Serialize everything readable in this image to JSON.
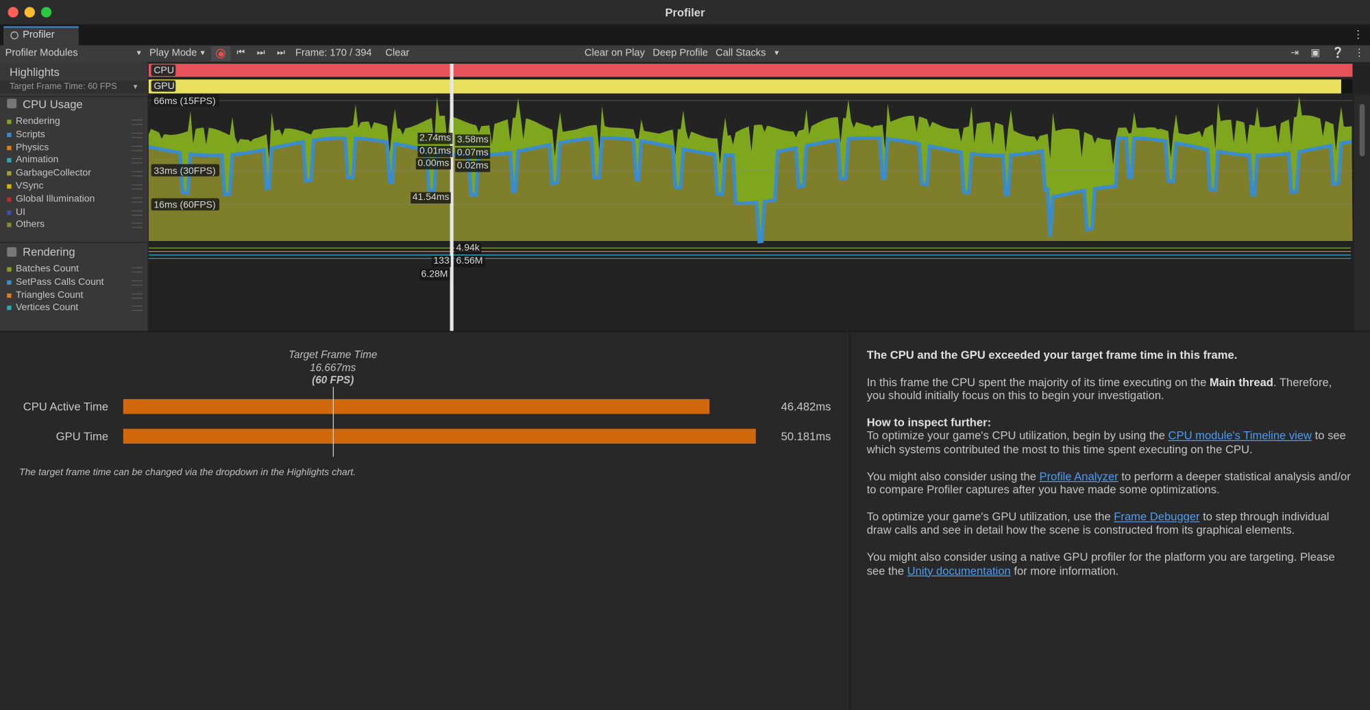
{
  "window": {
    "title": "Profiler"
  },
  "tab": "Profiler",
  "toolbar": {
    "modules": "Profiler Modules",
    "play_mode": "Play Mode",
    "frame": "Frame: 170 / 394",
    "clear": "Clear",
    "clear_on_play": "Clear on Play",
    "deep_profile": "Deep Profile",
    "call_stacks": "Call Stacks"
  },
  "highlights": {
    "title": "Highlights",
    "target": "Target Frame Time: 60 FPS",
    "cpu": "CPU",
    "gpu": "GPU"
  },
  "cpu_usage": {
    "title": "CPU Usage",
    "legend": [
      {
        "name": "Rendering",
        "color": "#7ea71e"
      },
      {
        "name": "Scripts",
        "color": "#3a8ccc"
      },
      {
        "name": "Physics",
        "color": "#e07a1c"
      },
      {
        "name": "Animation",
        "color": "#2ba8b2"
      },
      {
        "name": "GarbageCollector",
        "color": "#a3a032"
      },
      {
        "name": "VSync",
        "color": "#d8b400"
      },
      {
        "name": "Global Illumination",
        "color": "#b3312a"
      },
      {
        "name": "UI",
        "color": "#3e4fa8"
      },
      {
        "name": "Others",
        "color": "#8a8a2c"
      }
    ],
    "scale_labels": [
      "66ms (15FPS)",
      "33ms (30FPS)",
      "16ms (60FPS)"
    ],
    "selection_labels": [
      "2.74ms",
      "0.01ms",
      "0.00ms",
      "3.58ms",
      "0.07ms",
      "0.02ms",
      "41.54ms"
    ]
  },
  "rendering": {
    "title": "Rendering",
    "legend": [
      {
        "name": "Batches Count",
        "color": "#7ea71e"
      },
      {
        "name": "SetPass Calls Count",
        "color": "#3a8ccc"
      },
      {
        "name": "Triangles Count",
        "color": "#e07a1c"
      },
      {
        "name": "Vertices Count",
        "color": "#2ba8b2"
      }
    ],
    "selection_labels": [
      "4.94k",
      "133",
      "6.56M",
      "6.28M"
    ]
  },
  "frame_time": {
    "target_title": "Target Frame Time",
    "target": {
      "value": 16.667,
      "label": "16.667ms"
    },
    "target_fps": "(60 FPS)",
    "bars": [
      {
        "name": "CPU Active Time",
        "value": 46.482,
        "label": "46.482ms"
      },
      {
        "name": "GPU Time",
        "value": 50.181,
        "label": "50.181ms"
      }
    ],
    "color": "#d2680c",
    "note": "The target frame time can be changed via the dropdown in the Highlights chart."
  },
  "insights": {
    "paragraphs": [
      {
        "runs": [
          {
            "text": "The CPU and the GPU exceeded your target frame time in this frame.",
            "style": "bold"
          }
        ]
      },
      {
        "runs": [
          {
            "text": "In this frame the CPU spent the majority of its time executing on the "
          },
          {
            "text": "Main thread",
            "style": "bold"
          },
          {
            "text": ". Therefore, you should initially focus on this to begin your investigation."
          }
        ]
      },
      {
        "heading": "How to inspect further:",
        "runs": [
          {
            "text": "To optimize your game's CPU utilization, begin by using the "
          },
          {
            "text": "CPU module's Timeline view",
            "style": "link"
          },
          {
            "text": " to see which systems contributed the most to this time spent executing on the CPU."
          }
        ]
      },
      {
        "runs": [
          {
            "text": "You might also consider using the "
          },
          {
            "text": "Profile Analyzer",
            "style": "link"
          },
          {
            "text": " to perform a deeper statistical analysis and/or to compare Profiler captures after you have made some optimizations."
          }
        ]
      },
      {
        "runs": [
          {
            "text": "To optimize your game's GPU utilization, use the "
          },
          {
            "text": "Frame Debugger",
            "style": "link"
          },
          {
            "text": " to step through individual draw calls and see in detail how the scene is constructed from its graphical elements."
          }
        ]
      },
      {
        "runs": [
          {
            "text": "You might also consider using a native GPU profiler for the platform you are targeting. Please see the "
          },
          {
            "text": "Unity documentation",
            "style": "link"
          },
          {
            "text": " for more information."
          }
        ]
      }
    ]
  }
}
